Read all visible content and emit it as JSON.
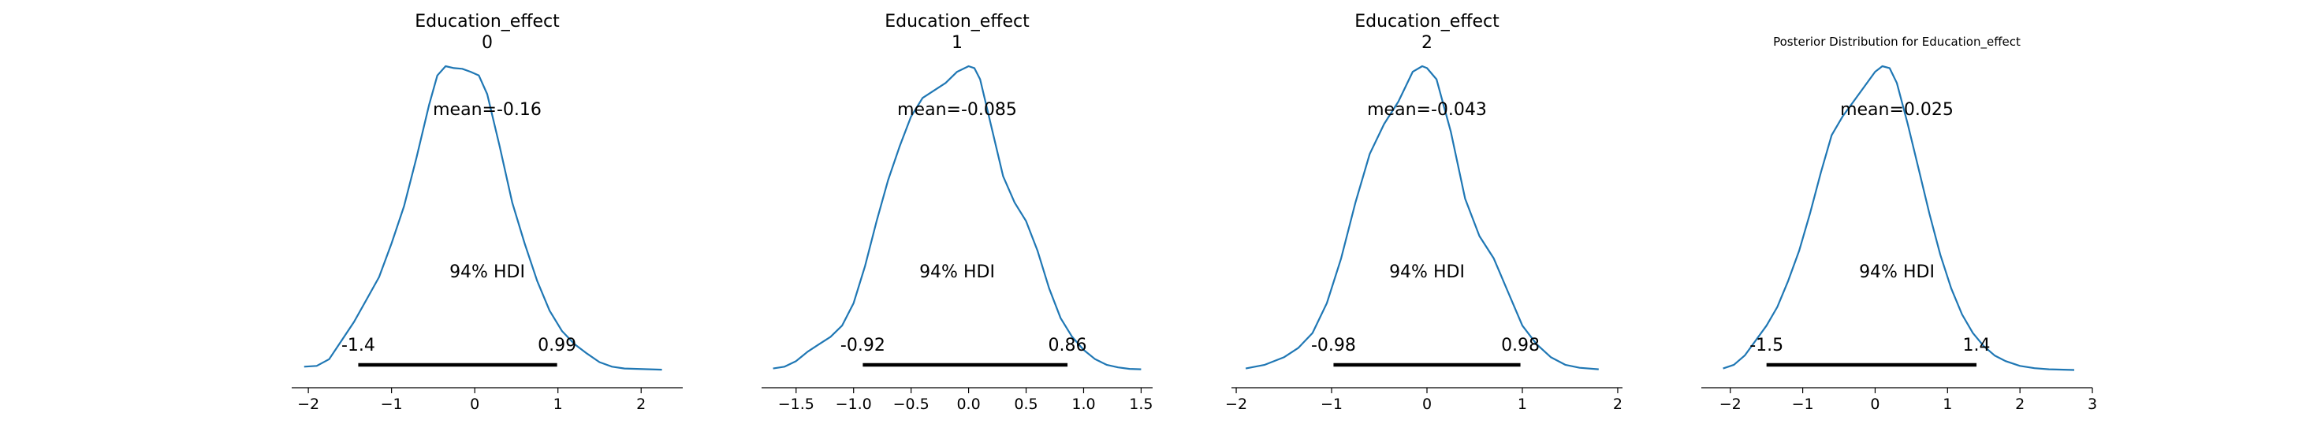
{
  "colors": {
    "density": "#1f77b4",
    "hdi_bar": "#000000",
    "axis": "#000000"
  },
  "chart_data": [
    {
      "type": "line",
      "title": "Education_effect\n0",
      "mean_label": "mean=-0.16",
      "hdi_label": "94% HDI",
      "hdi": {
        "low": -1.4,
        "high": 0.99,
        "low_label": "-1.4",
        "high_label": "0.99"
      },
      "xlim": [
        -2.2,
        2.5
      ],
      "xticks": [
        -2,
        -1,
        0,
        1,
        2
      ],
      "xtick_labels": [
        "−2",
        "−1",
        "0",
        "1",
        "2"
      ],
      "density": {
        "x": [
          -2.05,
          -1.9,
          -1.75,
          -1.6,
          -1.45,
          -1.3,
          -1.15,
          -1.0,
          -0.85,
          -0.7,
          -0.55,
          -0.45,
          -0.35,
          -0.25,
          -0.15,
          -0.05,
          0.05,
          0.15,
          0.3,
          0.45,
          0.6,
          0.75,
          0.9,
          1.05,
          1.2,
          1.35,
          1.5,
          1.65,
          1.8,
          1.95,
          2.1,
          2.25
        ],
        "y": [
          0.01,
          0.012,
          0.03,
          0.08,
          0.13,
          0.19,
          0.25,
          0.34,
          0.44,
          0.57,
          0.71,
          0.79,
          0.815,
          0.81,
          0.808,
          0.8,
          0.79,
          0.74,
          0.6,
          0.45,
          0.34,
          0.24,
          0.16,
          0.105,
          0.07,
          0.045,
          0.022,
          0.01,
          0.005,
          0.004,
          0.003,
          0.002
        ]
      }
    },
    {
      "type": "line",
      "title": "Education_effect\n1",
      "mean_label": "mean=-0.085",
      "hdi_label": "94% HDI",
      "hdi": {
        "low": -0.92,
        "high": 0.86,
        "low_label": "-0.92",
        "high_label": "0.86"
      },
      "xlim": [
        -1.8,
        1.6
      ],
      "xticks": [
        -1.5,
        -1.0,
        -0.5,
        0.0,
        0.5,
        1.0,
        1.5
      ],
      "xtick_labels": [
        "−1.5",
        "−1.0",
        "−0.5",
        "0.0",
        "0.5",
        "1.0",
        "1.5"
      ],
      "density": {
        "x": [
          -1.7,
          -1.6,
          -1.5,
          -1.4,
          -1.3,
          -1.2,
          -1.1,
          -1.0,
          -0.9,
          -0.8,
          -0.7,
          -0.6,
          -0.5,
          -0.4,
          -0.3,
          -0.2,
          -0.1,
          0.0,
          0.05,
          0.1,
          0.2,
          0.3,
          0.4,
          0.5,
          0.6,
          0.7,
          0.8,
          0.9,
          1.0,
          1.1,
          1.2,
          1.3,
          1.4,
          1.5
        ],
        "y": [
          0.005,
          0.01,
          0.025,
          0.05,
          0.07,
          0.09,
          0.12,
          0.18,
          0.28,
          0.4,
          0.51,
          0.6,
          0.68,
          0.73,
          0.75,
          0.77,
          0.8,
          0.815,
          0.81,
          0.78,
          0.65,
          0.52,
          0.45,
          0.4,
          0.32,
          0.22,
          0.14,
          0.09,
          0.055,
          0.03,
          0.015,
          0.008,
          0.004,
          0.003
        ]
      }
    },
    {
      "type": "line",
      "title": "Education_effect\n2",
      "mean_label": "mean=-0.043",
      "hdi_label": "94% HDI",
      "hdi": {
        "low": -0.98,
        "high": 0.98,
        "low_label": "-0.98",
        "high_label": "0.98"
      },
      "xlim": [
        -2.05,
        2.05
      ],
      "xticks": [
        -2,
        -1,
        0,
        1,
        2
      ],
      "xtick_labels": [
        "−2",
        "−1",
        "0",
        "1",
        "2"
      ],
      "density": {
        "x": [
          -1.9,
          -1.7,
          -1.5,
          -1.35,
          -1.2,
          -1.05,
          -0.9,
          -0.75,
          -0.6,
          -0.45,
          -0.3,
          -0.15,
          -0.05,
          0.0,
          0.1,
          0.25,
          0.4,
          0.55,
          0.7,
          0.85,
          1.0,
          1.15,
          1.3,
          1.45,
          1.6,
          1.8
        ],
        "y": [
          0.005,
          0.015,
          0.035,
          0.06,
          0.1,
          0.18,
          0.3,
          0.45,
          0.58,
          0.66,
          0.72,
          0.8,
          0.815,
          0.81,
          0.78,
          0.64,
          0.46,
          0.36,
          0.3,
          0.21,
          0.12,
          0.07,
          0.035,
          0.015,
          0.007,
          0.003
        ]
      }
    },
    {
      "type": "line",
      "title": "Posterior Distribution for Education_effect",
      "mean_label": "mean=0.025",
      "hdi_label": "94% HDI",
      "hdi": {
        "low": -1.5,
        "high": 1.4,
        "low_label": "-1.5",
        "high_label": "1.4"
      },
      "xlim": [
        -2.4,
        3.0
      ],
      "xticks": [
        -2,
        -1,
        0,
        1,
        2,
        3
      ],
      "xtick_labels": [
        "−2",
        "−1",
        "0",
        "1",
        "2",
        "3"
      ],
      "density": {
        "x": [
          -2.1,
          -1.95,
          -1.8,
          -1.65,
          -1.5,
          -1.35,
          -1.2,
          -1.05,
          -0.9,
          -0.75,
          -0.6,
          -0.45,
          -0.3,
          -0.15,
          0.0,
          0.1,
          0.2,
          0.3,
          0.45,
          0.6,
          0.75,
          0.9,
          1.05,
          1.2,
          1.35,
          1.5,
          1.65,
          1.8,
          2.0,
          2.2,
          2.4,
          2.6,
          2.75
        ],
        "y": [
          0.005,
          0.015,
          0.04,
          0.08,
          0.12,
          0.17,
          0.24,
          0.32,
          0.42,
          0.53,
          0.63,
          0.68,
          0.72,
          0.76,
          0.8,
          0.815,
          0.81,
          0.77,
          0.66,
          0.54,
          0.42,
          0.31,
          0.22,
          0.15,
          0.1,
          0.065,
          0.04,
          0.025,
          0.012,
          0.006,
          0.003,
          0.002,
          0.001
        ]
      }
    }
  ]
}
